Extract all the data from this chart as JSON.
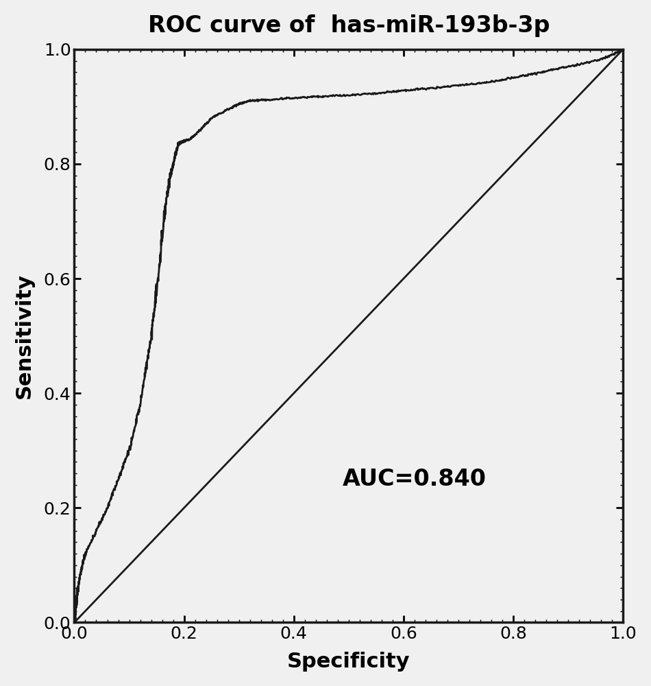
{
  "title": "ROC curve of  has-miR-193b-3p",
  "xlabel": "Specificity",
  "ylabel": "Sensitivity",
  "auc_text": "AUC=0.840",
  "xlim": [
    0.0,
    1.0
  ],
  "ylim": [
    0.0,
    1.0
  ],
  "xticks": [
    0.0,
    0.2,
    0.4,
    0.6,
    0.8,
    1.0
  ],
  "yticks": [
    0.0,
    0.2,
    0.4,
    0.6,
    0.8,
    1.0
  ],
  "curve_color": "#1a1a1a",
  "diagonal_color": "#1a1a1a",
  "background_color": "#f0f0f0",
  "title_fontsize": 24,
  "label_fontsize": 22,
  "tick_fontsize": 18,
  "auc_fontsize": 24,
  "line_width": 2.0,
  "figsize": [
    9.5,
    10.0
  ],
  "dpi": 100,
  "waypoints_fpr": [
    0.0,
    0.002,
    0.005,
    0.01,
    0.02,
    0.04,
    0.06,
    0.08,
    0.1,
    0.12,
    0.14,
    0.155,
    0.165,
    0.175,
    0.185,
    0.19,
    0.195,
    0.2,
    0.21,
    0.22,
    0.25,
    0.28,
    0.3,
    0.32,
    0.35,
    0.4,
    0.45,
    0.5,
    0.55,
    0.6,
    0.65,
    0.7,
    0.75,
    0.8,
    0.85,
    0.9,
    0.95,
    0.98,
    1.0
  ],
  "waypoints_tpr": [
    0.0,
    0.02,
    0.05,
    0.08,
    0.12,
    0.16,
    0.2,
    0.25,
    0.3,
    0.38,
    0.5,
    0.62,
    0.72,
    0.78,
    0.82,
    0.835,
    0.838,
    0.84,
    0.843,
    0.85,
    0.88,
    0.895,
    0.905,
    0.91,
    0.912,
    0.915,
    0.918,
    0.92,
    0.923,
    0.928,
    0.932,
    0.937,
    0.942,
    0.95,
    0.96,
    0.97,
    0.98,
    0.99,
    1.0
  ]
}
